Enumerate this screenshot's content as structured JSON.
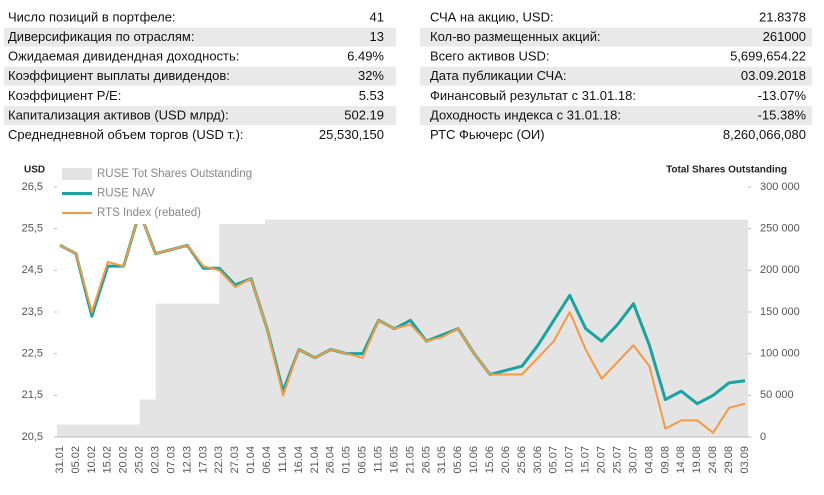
{
  "table": {
    "left": [
      {
        "label": "Число позиций в портфеле:",
        "value": "41"
      },
      {
        "label": "Диверсификация по отраслям:",
        "value": "13"
      },
      {
        "label": "Ожидаемая дивидендная доходность:",
        "value": "6.49%"
      },
      {
        "label": "Коэффициент выплаты дивидендов:",
        "value": "32%"
      },
      {
        "label": "Коэффициент P/E:",
        "value": "5.53"
      },
      {
        "label": "Капитализация активов (USD млрд):",
        "value": "502.19"
      },
      {
        "label": "Среднедневной объем торгов (USD т.):",
        "value": "25,530,150"
      }
    ],
    "right": [
      {
        "label": "СЧА на акцию, USD:",
        "value": "21.8378"
      },
      {
        "label": "Кол-во размещенных  акций:",
        "value": "261000"
      },
      {
        "label": "Всего активов USD:",
        "value": "5,699,654.22"
      },
      {
        "label": "Дата публикации СЧА:",
        "value": "03.09.2018"
      },
      {
        "label": "Финансовый результат с 31.01.18:",
        "value": "-13.07%"
      },
      {
        "label": "Доходность индекса с 31.01.18:",
        "value": "-15.38%"
      },
      {
        "label": "РТС Фьючерс (ОИ)",
        "value": "8,260,066,080"
      }
    ]
  },
  "chart_data": {
    "type": "line",
    "y_label": "USD",
    "y2_label": "Total Shares Outstanding",
    "legend": "upper left",
    "categories": [
      "31.01",
      "05.02",
      "10.02",
      "15.02",
      "20.02",
      "25.02",
      "02.03",
      "07.03",
      "12.03",
      "17.03",
      "22.03",
      "27.03",
      "01.04",
      "06.04",
      "11.04",
      "16.04",
      "21.04",
      "26.04",
      "01.05",
      "06.05",
      "11.05",
      "16.05",
      "21.05",
      "26.05",
      "31.05",
      "05.06",
      "10.06",
      "15.06",
      "20.06",
      "25.06",
      "30.06",
      "05.07",
      "10.07",
      "15.07",
      "20.07",
      "25.07",
      "30.07",
      "04.08",
      "09.08",
      "14.08",
      "19.08",
      "24.08",
      "29.08",
      "03.09"
    ],
    "ylim": [
      20.5,
      26.5
    ],
    "yticks": [
      {
        "value": 20.5,
        "label": "20,5"
      },
      {
        "value": 21.5,
        "label": "21,5"
      },
      {
        "value": 22.5,
        "label": "22,5"
      },
      {
        "value": 23.5,
        "label": "23,5"
      },
      {
        "value": 24.5,
        "label": "24,5"
      },
      {
        "value": 25.5,
        "label": "25,5"
      },
      {
        "value": 26.5,
        "label": "26,5"
      }
    ],
    "y2lim": [
      0,
      300000
    ],
    "y2ticks": [
      0,
      {
        "value": 50000,
        "label": "50 000"
      },
      {
        "value": 100000,
        "label": "100 000"
      },
      {
        "value": 150000,
        "label": "150 000"
      },
      {
        "value": 200000,
        "label": "200 000"
      },
      {
        "value": 250000,
        "label": "250 000"
      },
      {
        "value": 300000,
        "label": "300 000"
      }
    ],
    "series": [
      {
        "name": "RUSE Tot Shares Outstanding",
        "color": "#e4e4e4",
        "axis": "y2",
        "values": [
          15000,
          15000,
          15000,
          15000,
          15000,
          45000,
          160000,
          160000,
          160000,
          160000,
          261000,
          261000,
          261000,
          261000,
          261000,
          261000,
          261000,
          261000,
          261000,
          261000,
          261000,
          261000,
          261000,
          261000,
          261000,
          261000,
          261000,
          261000,
          261000,
          261000,
          261000,
          261000,
          261000,
          261000,
          261000,
          261000,
          261000,
          261000,
          261000,
          261000,
          261000,
          261000,
          261000,
          261000
        ]
      },
      {
        "name": "RUSE NAV",
        "color": "#1aa3a0",
        "values": [
          25.1,
          24.9,
          23.4,
          24.6,
          24.6,
          25.9,
          24.9,
          25.0,
          25.1,
          24.55,
          24.55,
          24.15,
          24.3,
          23.1,
          21.6,
          22.6,
          22.4,
          22.6,
          22.5,
          22.5,
          23.3,
          23.1,
          23.3,
          22.8,
          22.95,
          23.1,
          22.5,
          22.0,
          22.1,
          22.2,
          22.7,
          23.3,
          23.9,
          23.1,
          22.8,
          23.2,
          23.7,
          22.7,
          21.4,
          21.6,
          21.3,
          21.5,
          21.8,
          21.85
        ]
      },
      {
        "name": "RTS Index (rebated)",
        "color": "#f39a45",
        "values": [
          25.1,
          24.9,
          23.5,
          24.7,
          24.6,
          25.9,
          24.9,
          25.0,
          25.1,
          24.6,
          24.5,
          24.1,
          24.3,
          23.1,
          21.5,
          22.6,
          22.4,
          22.6,
          22.5,
          22.4,
          23.3,
          23.1,
          23.2,
          22.8,
          22.9,
          23.1,
          22.5,
          22.0,
          22.0,
          22.0,
          22.4,
          22.8,
          23.5,
          22.6,
          21.9,
          22.3,
          22.7,
          22.2,
          20.7,
          20.9,
          20.9,
          20.6,
          21.2,
          21.3
        ]
      }
    ]
  }
}
